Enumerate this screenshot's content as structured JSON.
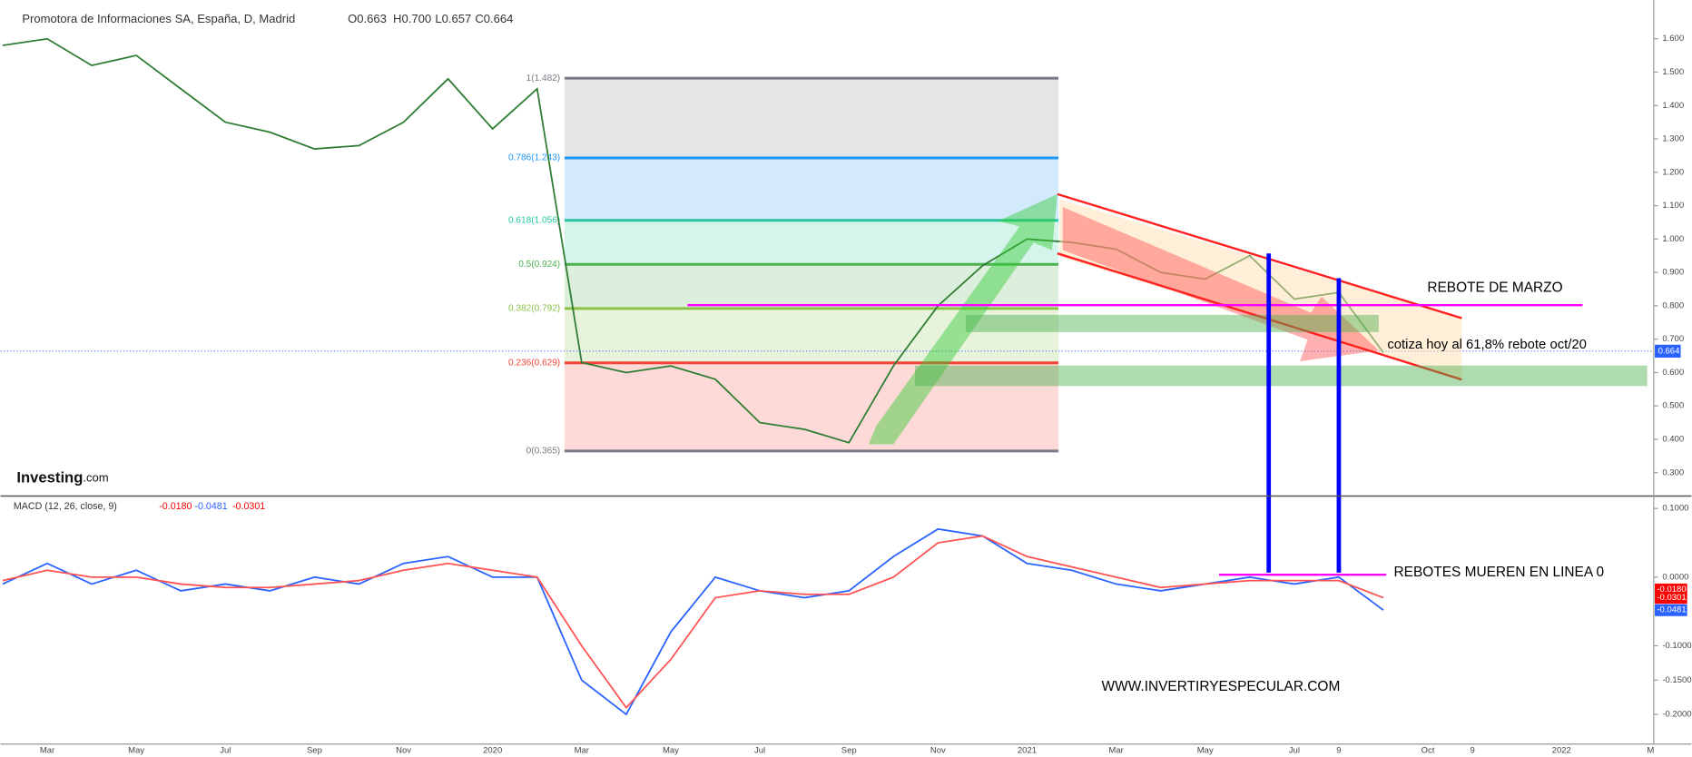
{
  "header": {
    "symbol": "Promotora de Informaciones SA, España, D, Madrid",
    "open": "O0.663",
    "high": "H0.700",
    "low": "L0.657",
    "close": "C0.664"
  },
  "logo": {
    "brand": "Investing",
    "suffix": ".com"
  },
  "annotations": {
    "rebote_marzo": "REBOTE DE MARZO",
    "cotiza": "cotiza hoy al 61,8% rebote oct/20",
    "rebotes": "REBOTES  MUEREN EN LINEA 0",
    "website": "WWW.INVERTIRYESPECULAR.COM"
  },
  "chart_data": [
    {
      "type": "line",
      "title": "Promotora de Informaciones SA",
      "categories": [
        null,
        "Mar",
        null,
        "May",
        null,
        "Jul",
        null,
        "Sep",
        null,
        "Nov",
        null,
        "2020",
        null,
        "Mar",
        null,
        "May",
        null,
        "Jul",
        null,
        "Sep",
        null,
        "Nov",
        null,
        "2021",
        null,
        "Mar",
        null,
        "May",
        null,
        "Jul",
        "9",
        null,
        "Oct",
        "9",
        null,
        "2022",
        null,
        "M"
      ],
      "series": [
        {
          "name": "Price",
          "color": "#2e7d32",
          "values": [
            1.58,
            1.6,
            1.52,
            1.55,
            1.45,
            1.35,
            1.32,
            1.27,
            1.28,
            1.35,
            1.48,
            1.33,
            1.45,
            0.63,
            0.6,
            0.62,
            0.58,
            0.45,
            0.43,
            0.39,
            0.62,
            0.8,
            0.92,
            1.0,
            0.99,
            0.97,
            0.9,
            0.88,
            0.95,
            0.82,
            0.84,
            0.66,
            null,
            null,
            null,
            null,
            null,
            null
          ]
        }
      ],
      "ylim": [
        0.23,
        1.7
      ],
      "yticks": [
        {
          "value": 0.3,
          "label": "0.300"
        },
        {
          "value": 0.4,
          "label": "0.400"
        },
        {
          "value": 0.5,
          "label": "0.500"
        },
        {
          "value": 0.6,
          "label": "0.600"
        },
        {
          "value": 0.7,
          "label": "0.700"
        },
        {
          "value": 0.8,
          "label": "0.800"
        },
        {
          "value": 0.9,
          "label": "0.900"
        },
        {
          "value": 1.0,
          "label": "1.000"
        },
        {
          "value": 1.1,
          "label": "1.100"
        },
        {
          "value": 1.2,
          "label": "1.200"
        },
        {
          "value": 1.3,
          "label": "1.300"
        },
        {
          "value": 1.4,
          "label": "1.400"
        },
        {
          "value": 1.5,
          "label": "1.500"
        },
        {
          "value": 1.6,
          "label": "1.600"
        }
      ],
      "last_price": 0.664,
      "fib_levels": [
        {
          "value": 1.482,
          "label": "1(1.482)",
          "color": "#787b86"
        },
        {
          "value": 1.243,
          "label": "0.786(1.243)",
          "color": "#2196f3"
        },
        {
          "value": 1.056,
          "label": "0.618(1.056)",
          "color": "#26c6a0"
        },
        {
          "value": 0.924,
          "label": "0.5(0.924)",
          "color": "#4caf50"
        },
        {
          "value": 0.792,
          "label": "0.382(0.792)",
          "color": "#8bc34a"
        },
        {
          "value": 0.629,
          "label": "0.236(0.629)",
          "color": "#f44336"
        },
        {
          "value": 0.365,
          "label": "0(0.365)",
          "color": "#787b86"
        }
      ]
    },
    {
      "type": "line",
      "title": "MACD (12, 26, close, 9)",
      "series": [
        {
          "name": "MACD",
          "color": "#2962ff",
          "values": [
            -0.01,
            0.02,
            -0.01,
            0.01,
            -0.02,
            -0.01,
            -0.02,
            0.0,
            -0.01,
            0.02,
            0.03,
            0.0,
            0.0,
            -0.15,
            -0.2,
            -0.08,
            0.0,
            -0.02,
            -0.03,
            -0.02,
            0.03,
            0.07,
            0.06,
            0.02,
            0.01,
            -0.01,
            -0.02,
            -0.01,
            0.0,
            -0.01,
            0.0,
            -0.048,
            null,
            null,
            null,
            null,
            null,
            null
          ]
        },
        {
          "name": "Signal",
          "color": "#ff5252",
          "values": [
            -0.005,
            0.01,
            0.0,
            0.0,
            -0.01,
            -0.015,
            -0.015,
            -0.01,
            -0.005,
            0.01,
            0.02,
            0.01,
            0.0,
            -0.1,
            -0.19,
            -0.12,
            -0.03,
            -0.02,
            -0.025,
            -0.025,
            0.0,
            0.05,
            0.06,
            0.03,
            0.015,
            0.0,
            -0.015,
            -0.01,
            -0.005,
            -0.005,
            -0.005,
            -0.03,
            null,
            null,
            null,
            null,
            null,
            null
          ]
        }
      ],
      "ylim": [
        -0.24,
        0.115
      ],
      "yticks": [
        {
          "value": 0.1,
          "label": "0.1000"
        },
        {
          "value": 0,
          "label": "0.0000"
        },
        {
          "value": -0.1,
          "label": "-0.1000"
        },
        {
          "value": -0.15,
          "label": "-0.1500"
        },
        {
          "value": -0.2,
          "label": "-0.2000"
        }
      ],
      "last_values": [
        {
          "value": -0.018,
          "label": "-0.0180",
          "color": "#ff0000"
        },
        {
          "value": -0.0301,
          "label": "-0.0301",
          "color": "#ff0000"
        },
        {
          "value": -0.0481,
          "label": "-0.0481",
          "color": "#2962ff"
        }
      ]
    }
  ]
}
